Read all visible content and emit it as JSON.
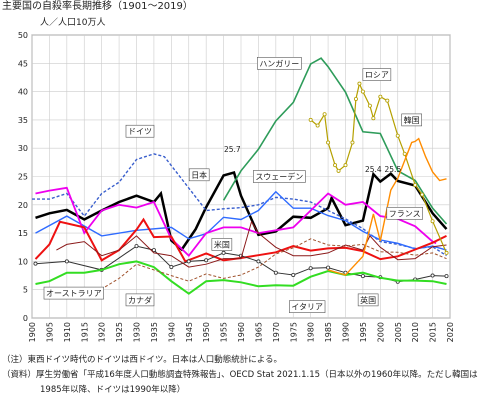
{
  "chart_data": {
    "type": "line",
    "title": "主要国の自殺率長期推移（1901～2019）",
    "y_label": "人／人口10万人",
    "xlim": [
      1900,
      2020
    ],
    "xticks": [
      1900,
      1905,
      1910,
      1915,
      1920,
      1925,
      1930,
      1935,
      1940,
      1945,
      1950,
      1955,
      1960,
      1965,
      1970,
      1975,
      1980,
      1985,
      1990,
      1995,
      2000,
      2005,
      2010,
      2015,
      2020
    ],
    "ylim": [
      0,
      50
    ],
    "yticks": [
      0,
      5,
      10,
      15,
      20,
      25,
      30,
      35,
      40,
      45,
      50
    ],
    "grid": true,
    "series": [
      {
        "name": "日本",
        "color": "#000000",
        "width": 2.5,
        "x": [
          1901,
          1905,
          1910,
          1915,
          1920,
          1925,
          1930,
          1935,
          1937,
          1940,
          1943,
          1947,
          1950,
          1955,
          1958,
          1960,
          1965,
          1970,
          1975,
          1980,
          1985,
          1986,
          1990,
          1995,
          1998,
          2000,
          2003,
          2005,
          2010,
          2015,
          2019
        ],
        "values": [
          17.7,
          18.5,
          19.1,
          17.4,
          19.0,
          20.5,
          21.6,
          20.5,
          22.0,
          13.7,
          12.1,
          15.7,
          19.6,
          25.2,
          25.7,
          21.6,
          14.7,
          15.3,
          17.9,
          17.7,
          19.4,
          21.2,
          16.4,
          17.2,
          25.4,
          24.1,
          25.5,
          24.2,
          23.4,
          18.5,
          15.7
        ]
      },
      {
        "name": "ハンガリー",
        "color": "#2e9c5a",
        "width": 1.6,
        "x": [
          1955,
          1960,
          1965,
          1970,
          1975,
          1980,
          1983,
          1985,
          1990,
          1995,
          2000,
          2005,
          2010,
          2015,
          2019
        ],
        "values": [
          20.8,
          26.0,
          29.8,
          34.8,
          38.1,
          44.9,
          45.9,
          44.4,
          39.9,
          32.9,
          32.6,
          26.0,
          24.3,
          19.4,
          16.6
        ]
      },
      {
        "name": "ドイツ",
        "color": "#3a5fcd",
        "width": 1.4,
        "dashed": true,
        "x": [
          1900,
          1905,
          1910,
          1915,
          1920,
          1925,
          1930,
          1935,
          1938,
          1950,
          1955,
          1960,
          1965,
          1970,
          1975,
          1980,
          1985,
          1990,
          1995,
          2000,
          2005,
          2010,
          2015,
          2019
        ],
        "values": [
          21,
          21,
          22,
          18,
          22,
          24,
          28,
          29,
          28.5,
          19,
          19.3,
          19.5,
          20,
          21.3,
          21,
          20.5,
          19,
          17.5,
          15.8,
          13.5,
          13,
          12.3,
          12.6,
          11
        ]
      },
      {
        "name": "スウェーデン",
        "color": "#2f6bff",
        "width": 1.4,
        "x": [
          1901,
          1910,
          1920,
          1930,
          1940,
          1945,
          1950,
          1955,
          1960,
          1965,
          1970,
          1975,
          1980,
          1985,
          1990,
          1995,
          2000,
          2005,
          2010,
          2015,
          2019
        ],
        "values": [
          15,
          18,
          14.5,
          15.5,
          16,
          14,
          14.9,
          17.8,
          17.4,
          19,
          22.3,
          19.4,
          19.4,
          18.1,
          17.2,
          15.3,
          13.8,
          13.2,
          12.2,
          12.7,
          12
        ]
      },
      {
        "name": "フランス",
        "color": "#ee00ee",
        "width": 1.8,
        "x": [
          1901,
          1905,
          1910,
          1915,
          1920,
          1925,
          1930,
          1935,
          1940,
          1945,
          1950,
          1955,
          1960,
          1965,
          1970,
          1975,
          1980,
          1985,
          1990,
          1995,
          2000,
          2005,
          2010,
          2015,
          2016
        ],
        "values": [
          22,
          22.5,
          23,
          15,
          19,
          20,
          19.5,
          20.5,
          14,
          11,
          15,
          16,
          16,
          15,
          15.5,
          16,
          19,
          22,
          20,
          20.5,
          18,
          17.5,
          16.2,
          13.5,
          13.2
        ]
      },
      {
        "name": "米国",
        "color": "#ee1111",
        "width": 2,
        "x": [
          1901,
          1905,
          1908,
          1915,
          1920,
          1925,
          1930,
          1932,
          1935,
          1940,
          1944,
          1950,
          1955,
          1960,
          1965,
          1970,
          1975,
          1980,
          1985,
          1990,
          1995,
          2000,
          2005,
          2010,
          2015,
          2019
        ],
        "values": [
          10.4,
          13,
          17,
          16,
          10.2,
          12,
          15.6,
          17.4,
          14.3,
          14.4,
          10,
          11.4,
          10.2,
          10.6,
          11.1,
          11.6,
          12.7,
          11.9,
          12.3,
          12.4,
          11.8,
          10.4,
          10.9,
          12.1,
          13.3,
          14.5
        ]
      },
      {
        "name": "英国",
        "color": "#333333",
        "width": 1,
        "marker": true,
        "x": [
          1901,
          1910,
          1920,
          1930,
          1935,
          1940,
          1945,
          1950,
          1955,
          1960,
          1965,
          1970,
          1975,
          1980,
          1985,
          1990,
          1995,
          2000,
          2005,
          2010,
          2015,
          2019
        ],
        "values": [
          9.6,
          10,
          8.5,
          12.7,
          12,
          9,
          10,
          10.2,
          11.5,
          11,
          10,
          8,
          7.6,
          8.8,
          8.9,
          8,
          7.4,
          7.2,
          6.4,
          6.8,
          7.5,
          7.4
        ]
      },
      {
        "name": "イタリア",
        "color": "#33dd22",
        "width": 2,
        "x": [
          1901,
          1905,
          1910,
          1915,
          1920,
          1925,
          1930,
          1935,
          1940,
          1945,
          1950,
          1955,
          1960,
          1965,
          1970,
          1975,
          1980,
          1985,
          1990,
          1995,
          2000,
          2005,
          2010,
          2015,
          2019
        ],
        "values": [
          6,
          6.5,
          8,
          8,
          8.5,
          9.5,
          10,
          9,
          6.5,
          4.3,
          6.5,
          6.7,
          6.3,
          5.6,
          5.8,
          5.7,
          7.3,
          8.3,
          7.6,
          8,
          7.1,
          6.6,
          6.6,
          6.5,
          6
        ]
      },
      {
        "name": "カナダ",
        "color": "#a0522d",
        "width": 1,
        "dashed": true,
        "x": [
          1921,
          1925,
          1930,
          1935,
          1940,
          1945,
          1950,
          1955,
          1960,
          1965,
          1970,
          1975,
          1980,
          1985,
          1990,
          1995,
          2000,
          2005,
          2010,
          2015,
          2019
        ],
        "values": [
          5.5,
          7,
          9.5,
          8.5,
          7.5,
          6.5,
          7.8,
          7,
          7.6,
          9,
          11.3,
          12.4,
          14,
          12.9,
          12.7,
          13,
          11.7,
          11.6,
          11.1,
          11.5,
          10.5
        ]
      },
      {
        "name": "オーストラリア",
        "color": "#8b1a1a",
        "width": 1,
        "x": [
          1907,
          1910,
          1915,
          1920,
          1925,
          1930,
          1935,
          1940,
          1945,
          1950,
          1955,
          1960,
          1963,
          1965,
          1970,
          1975,
          1980,
          1985,
          1990,
          1995,
          1997,
          2000,
          2005,
          2010,
          2015,
          2019
        ],
        "values": [
          12,
          13,
          13.5,
          11,
          12,
          14.5,
          11.5,
          11,
          9,
          9.5,
          10.5,
          10.5,
          17,
          15,
          12.5,
          11,
          11,
          11.5,
          12.9,
          12,
          14.5,
          12.5,
          10.3,
          10.5,
          12.6,
          12.9
        ]
      },
      {
        "name": "ロシア",
        "color": "#b5a000",
        "width": 1.2,
        "marker": true,
        "x": [
          1980,
          1982,
          1984,
          1985,
          1987,
          1988,
          1990,
          1992,
          1993,
          1994,
          1995,
          1997,
          1998,
          2000,
          2002,
          2005,
          2007,
          2010,
          2012,
          2015,
          2019
        ],
        "values": [
          35,
          34,
          36,
          31,
          27,
          26,
          27,
          31,
          38.7,
          41.4,
          40,
          37.5,
          35.3,
          39.1,
          38.4,
          32.2,
          29,
          23.5,
          21.8,
          17.1,
          11.5
        ]
      },
      {
        "name": "韓国",
        "color": "#ff8c00",
        "width": 1.4,
        "x": [
          1985,
          1990,
          1995,
          1998,
          2000,
          2003,
          2005,
          2009,
          2010,
          2011,
          2013,
          2015,
          2017,
          2019
        ],
        "values": [
          8.5,
          7.6,
          10.9,
          18.4,
          13.6,
          22.6,
          24.7,
          31,
          31.2,
          31.7,
          28.5,
          25.8,
          24.3,
          24.6
        ]
      }
    ],
    "annotations": [
      "25.7",
      "25.4",
      "25.5"
    ],
    "notes": [
      "（注）東西ドイツ時代のドイツは西ドイツ。日本は人口動態統計による。",
      "（資料）厚生労働省「平成16年度人口動態調査特殊報告」、OECD Stat 2021.1.15（日本以外の1960年以降。ただし韓国は",
      "1985年以降、ドイツは1990年以降）"
    ]
  }
}
